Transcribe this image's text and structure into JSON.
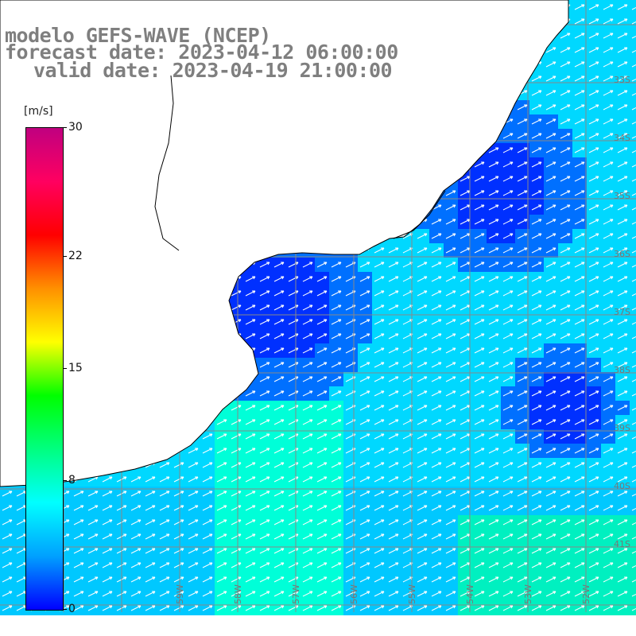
{
  "title": {
    "model": "modelo GEFS-WAVE (NCEP)",
    "forecast": "forecast date: 2023-04-12 06:00:00",
    "valid": "valid date: 2023-04-19 21:00:00"
  },
  "colorbar": {
    "unit": "[m/s]",
    "ticks": [
      "30",
      "22",
      "15",
      "8",
      "0"
    ],
    "tick_values": [
      30,
      22,
      15,
      8,
      0
    ],
    "range": [
      0,
      30
    ],
    "colors": [
      "#0000ff",
      "#00a0ff",
      "#00ffff",
      "#00ff80",
      "#00ff00",
      "#ffff00",
      "#ff9000",
      "#ff0000",
      "#ff0060",
      "#c00080"
    ]
  },
  "map": {
    "lat_labels": [
      "33S",
      "34S",
      "35S",
      "36S",
      "37S",
      "38S",
      "39S",
      "40S",
      "41S"
    ],
    "lon_labels": [
      "59W",
      "58W",
      "57W",
      "56W",
      "55W",
      "54W",
      "53W",
      "52W"
    ],
    "land_color": "#ffffff",
    "grid_color": "#888888",
    "field": "wind speed with direction arrows"
  }
}
